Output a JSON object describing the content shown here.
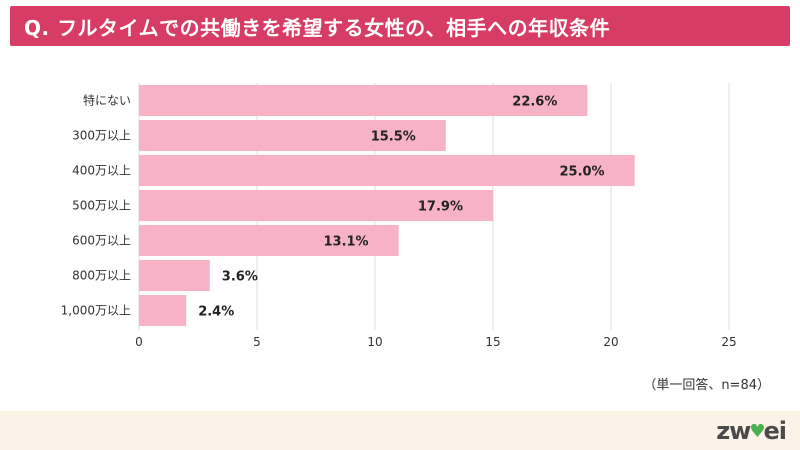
{
  "header": {
    "title": "Q. フルタイムでの共働きを希望する女性の、相手への年収条件"
  },
  "note": "（単一回答、n=84）",
  "logo": {
    "left": "zw",
    "right": "ei"
  },
  "colors": {
    "title_bg": "#d63c64",
    "bar": "#f7b3c5",
    "grid": "#dddddd",
    "footer_bg": "#fbf3e8",
    "logo_accent": "#4caf50"
  },
  "chart_data": {
    "type": "bar",
    "orientation": "horizontal",
    "title": "",
    "xlabel": "",
    "ylabel": "",
    "categories": [
      "特にない",
      "300万以上",
      "400万以上",
      "500万以上",
      "600万以上",
      "800万以上",
      "1,000万以上"
    ],
    "values": [
      19,
      13,
      21,
      15,
      11,
      3,
      2
    ],
    "data_labels": [
      "22.6%",
      "15.5%",
      "25.0%",
      "17.9%",
      "13.1%",
      "3.6%",
      "2.4%"
    ],
    "xlim": [
      0,
      25
    ],
    "xticks": [
      0,
      5,
      10,
      15,
      20,
      25
    ],
    "grid": "vertical",
    "legend": "none"
  }
}
